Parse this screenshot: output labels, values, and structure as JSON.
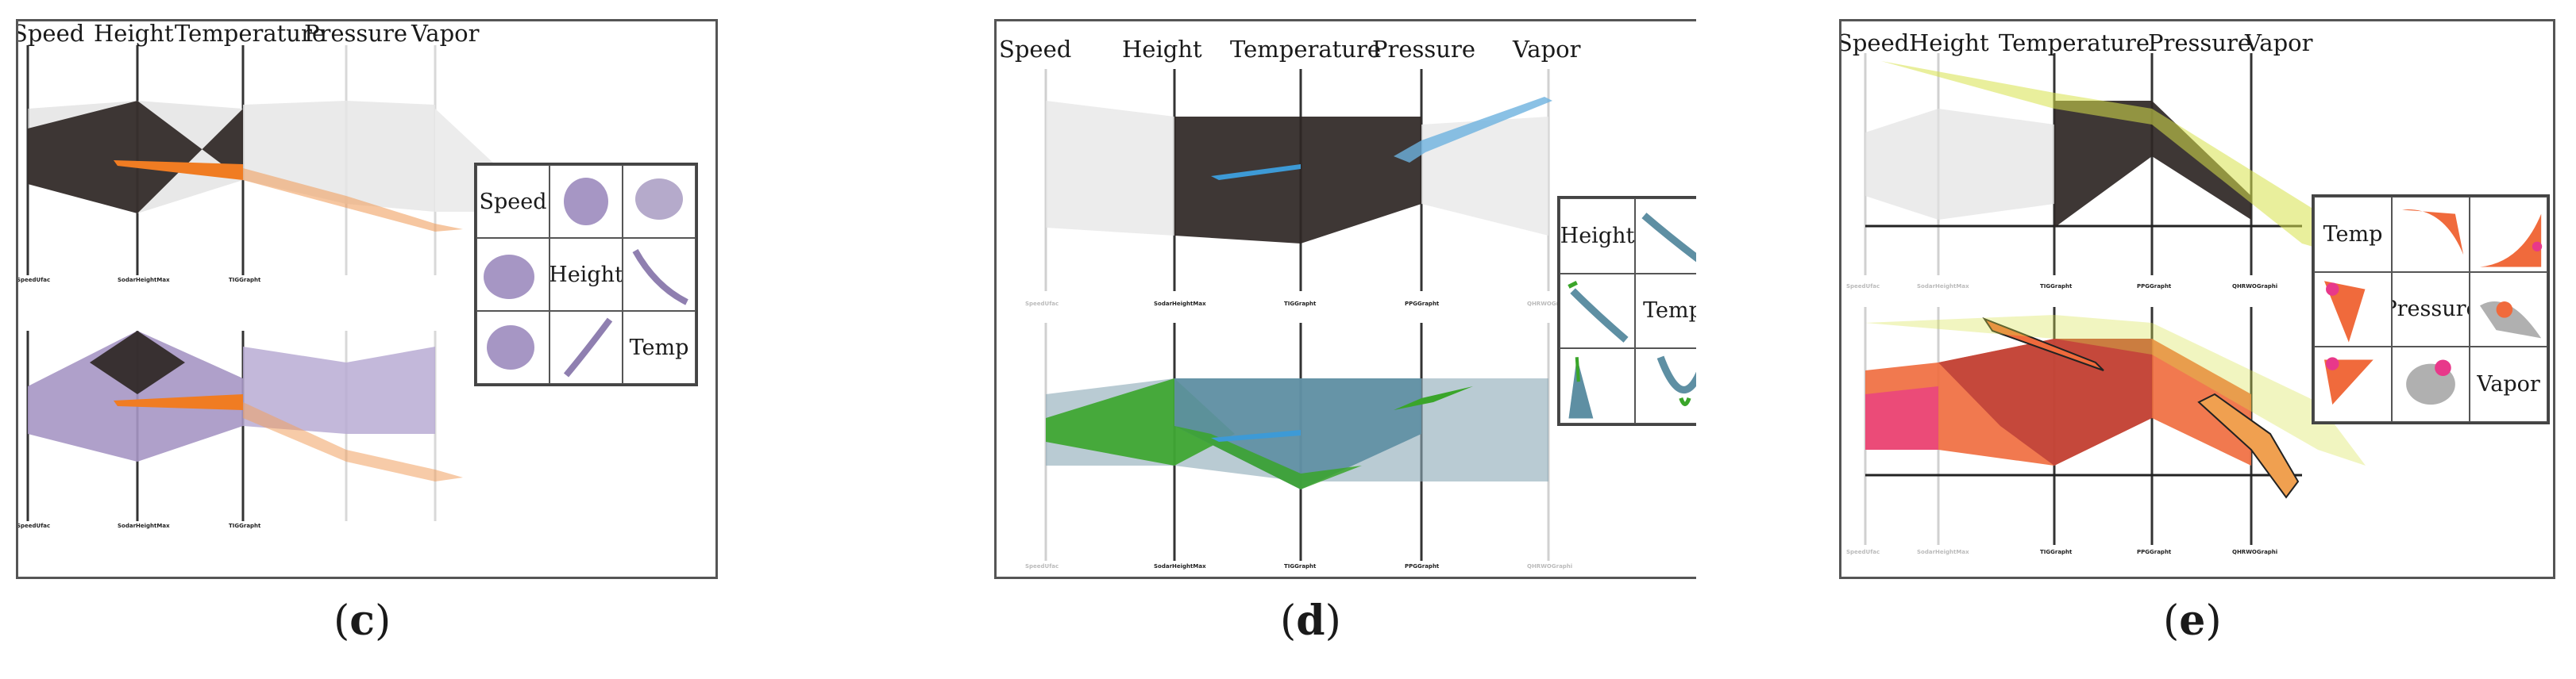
{
  "axes": [
    "Speed",
    "Height",
    "Temperature",
    "Pressure",
    "Vapor"
  ],
  "panels": [
    {
      "caption_open": "(",
      "caption_letter": "c",
      "caption_close": ")",
      "tick_labels_top": [
        "SpeedUfac",
        "SodarHeightMax",
        "TIGGrapht",
        "",
        ""
      ],
      "tick_labels_bottom": [
        "SpeedUfac",
        "SodarHeightMax",
        "TIGGrapht",
        "",
        ""
      ],
      "matrix": [
        "Speed",
        "Height",
        "Temp"
      ],
      "colors": {
        "dark": "#2e2624",
        "highlight": "#f07c22",
        "select": "#a696c4"
      }
    },
    {
      "caption_open": "(",
      "caption_letter": "d",
      "caption_close": ")",
      "tick_labels_top": [
        "SpeedUfac",
        "SodarHeightMax",
        "TIGGrapht",
        "PPGGrapht",
        "QHRWOGraphi"
      ],
      "tick_labels_bottom": [
        "SpeedUfac",
        "SodarHeightMax",
        "TIGGrapht",
        "PPGGrapht",
        "QHRWOGraphi"
      ],
      "matrix": [
        "Height",
        "Temp"
      ],
      "colors": {
        "dark": "#2e2624",
        "highlight": "#3d9ad6",
        "select": "#5e8fa3",
        "green": "#3aa52a"
      }
    },
    {
      "caption_open": "(",
      "caption_letter": "e",
      "caption_close": ")",
      "tick_labels_top": [
        "SpeedUfac",
        "SodarHeightMax",
        "TIGGrapht",
        "PPGGrapht",
        "QHRWOGraphi"
      ],
      "tick_labels_bottom": [
        "SpeedUfac",
        "SodarHeightMax",
        "TIGGrapht",
        "PPGGrapht",
        "QHRWOGraphi"
      ],
      "matrix": [
        "Temp",
        "Pressure",
        "Vapor"
      ],
      "colors": {
        "dark": "#2e2624",
        "highlight": "#d7e24a",
        "select": "#f06a3c",
        "pink": "#e8388a"
      }
    }
  ]
}
